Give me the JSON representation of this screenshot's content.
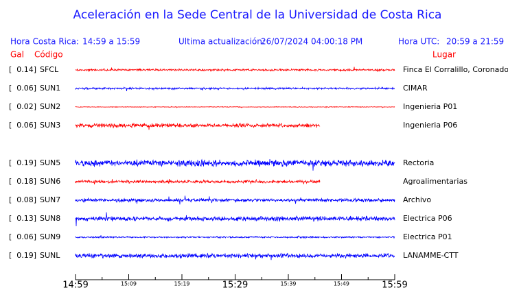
{
  "title": "Aceleración en la Sede Central de la Universidad de Costa Rica",
  "header": {
    "local_label": "Hora Costa Rica:",
    "local_value": "14:59 a 15:59",
    "update_label": "Ultima actualización:",
    "update_value": "26/07/2024 04:00:18 PM",
    "utc_label": "Hora UTC:",
    "utc_value": "20:59 a 21:59",
    "gal": "Gal",
    "code": "Código",
    "place": "Lugar"
  },
  "stations": [
    {
      "gal": "[  0.14]",
      "code": "SFCL",
      "place": "Finca El Corralillo, Coronado",
      "color": "#ff0000"
    },
    {
      "gal": "[  0.06]",
      "code": "SUN1",
      "place": "CIMAR",
      "color": "#0000ff"
    },
    {
      "gal": "[  0.02]",
      "code": "SUN2",
      "place": "Ingenieria P01",
      "color": "#ff0000"
    },
    {
      "gal": "[  0.06]",
      "code": "SUN3",
      "place": "Ingenieria P06",
      "color": "#ff0000"
    },
    {
      "gal": "[  0.19]",
      "code": "SUN5",
      "place": "Rectoria",
      "color": "#0000ff"
    },
    {
      "gal": "[  0.18]",
      "code": "SUN6",
      "place": "Agroalimentarias",
      "color": "#ff0000"
    },
    {
      "gal": "[  0.08]",
      "code": "SUN7",
      "place": "Archivo",
      "color": "#0000ff"
    },
    {
      "gal": "[  0.13]",
      "code": "SUN8",
      "place": "Electrica P06",
      "color": "#0000ff"
    },
    {
      "gal": "[  0.06]",
      "code": "SUN9",
      "place": "Electrica P01",
      "color": "#0000ff"
    },
    {
      "gal": "[  0.19]",
      "code": "SUNL",
      "place": "LANAMME-CTT",
      "color": "#0000ff"
    }
  ],
  "time_axis": [
    {
      "label": "14:59",
      "major": true
    },
    {
      "label": "15:09",
      "major": false
    },
    {
      "label": "15:19",
      "major": false
    },
    {
      "label": "15:29",
      "major": true
    },
    {
      "label": "15:39",
      "major": false
    },
    {
      "label": "15:49",
      "major": false
    },
    {
      "label": "15:59",
      "major": true
    }
  ]
}
